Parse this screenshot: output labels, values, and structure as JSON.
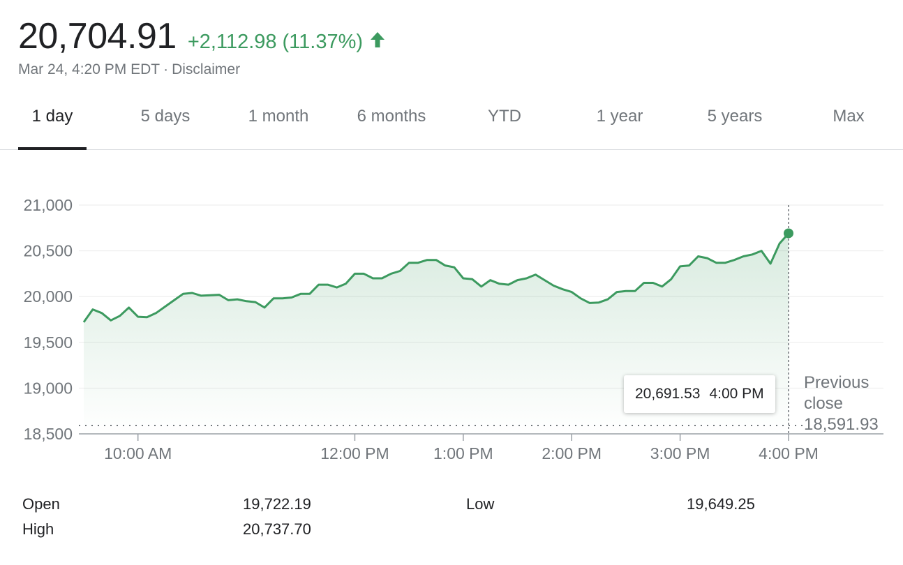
{
  "quote": {
    "price": "20,704.91",
    "change": "+2,112.98",
    "change_pct": "(11.37%)",
    "direction": "up",
    "timestamp": "Mar 24, 4:20 PM EDT",
    "separator": "·",
    "disclaimer": "Disclaimer"
  },
  "tabs": [
    {
      "label": "1 day",
      "active": true
    },
    {
      "label": "5 days",
      "active": false
    },
    {
      "label": "1 month",
      "active": false
    },
    {
      "label": "6 months",
      "active": false
    },
    {
      "label": "YTD",
      "active": false
    },
    {
      "label": "1 year",
      "active": false
    },
    {
      "label": "5 years",
      "active": false
    },
    {
      "label": "Max",
      "active": false
    }
  ],
  "colors": {
    "up": "#3c9a5f",
    "line": "#3c9a5f",
    "text": "#202124",
    "muted": "#70757a",
    "grid": "#ebebeb"
  },
  "tooltip": {
    "value": "20,691.53",
    "time": "4:00 PM"
  },
  "previous_close": {
    "label_line1": "Previous",
    "label_line2": "close",
    "value": "18,591.93"
  },
  "stats": {
    "open_label": "Open",
    "open_value": "19,722.19",
    "high_label": "High",
    "high_value": "20,737.70",
    "low_label": "Low",
    "low_value": "19,649.25"
  },
  "chart_data": {
    "type": "line",
    "x_unit": "minutes since midnight (ET)",
    "ylim": [
      18500,
      21000
    ],
    "yticks": [
      {
        "value": 21000,
        "label": "21,000"
      },
      {
        "value": 20500,
        "label": "20,500"
      },
      {
        "value": 20000,
        "label": "20,000"
      },
      {
        "value": 19500,
        "label": "19,500"
      },
      {
        "value": 19000,
        "label": "19,000"
      },
      {
        "value": 18500,
        "label": "18,500"
      }
    ],
    "xlim": [
      570,
      960
    ],
    "xticks": [
      {
        "value": 600,
        "label": "10:00 AM"
      },
      {
        "value": 720,
        "label": "12:00 PM"
      },
      {
        "value": 780,
        "label": "1:00 PM"
      },
      {
        "value": 840,
        "label": "2:00 PM"
      },
      {
        "value": 900,
        "label": "3:00 PM"
      },
      {
        "value": 960,
        "label": "4:00 PM"
      }
    ],
    "grid": true,
    "previous_close": 18591.93,
    "highlight": {
      "x": 960,
      "y": 20691.53
    },
    "x": [
      570,
      575,
      580,
      585,
      590,
      595,
      600,
      605,
      610,
      615,
      620,
      625,
      630,
      635,
      640,
      645,
      650,
      655,
      660,
      665,
      670,
      675,
      680,
      685,
      690,
      695,
      700,
      705,
      710,
      715,
      720,
      725,
      730,
      735,
      740,
      745,
      750,
      755,
      760,
      765,
      770,
      775,
      780,
      785,
      790,
      795,
      800,
      805,
      810,
      815,
      820,
      825,
      830,
      835,
      840,
      845,
      850,
      855,
      860,
      865,
      870,
      875,
      880,
      885,
      890,
      895,
      900,
      905,
      910,
      915,
      920,
      925,
      930,
      935,
      940,
      945,
      950,
      955,
      960
    ],
    "y": [
      19720,
      19860,
      19820,
      19740,
      19790,
      19880,
      19780,
      19775,
      19820,
      19890,
      19960,
      20030,
      20040,
      20010,
      20015,
      20020,
      19960,
      19970,
      19950,
      19940,
      19880,
      19980,
      19980,
      19990,
      20030,
      20030,
      20130,
      20130,
      20100,
      20140,
      20250,
      20250,
      20200,
      20200,
      20250,
      20280,
      20370,
      20370,
      20400,
      20400,
      20340,
      20320,
      20200,
      20190,
      20110,
      20180,
      20140,
      20130,
      20180,
      20200,
      20240,
      20180,
      20120,
      20080,
      20050,
      19980,
      19930,
      19935,
      19970,
      20050,
      20060,
      20060,
      20150,
      20150,
      20110,
      20190,
      20330,
      20340,
      20440,
      20420,
      20370,
      20370,
      20400,
      20440,
      20460,
      20500,
      20360,
      20580,
      20691.53
    ]
  }
}
